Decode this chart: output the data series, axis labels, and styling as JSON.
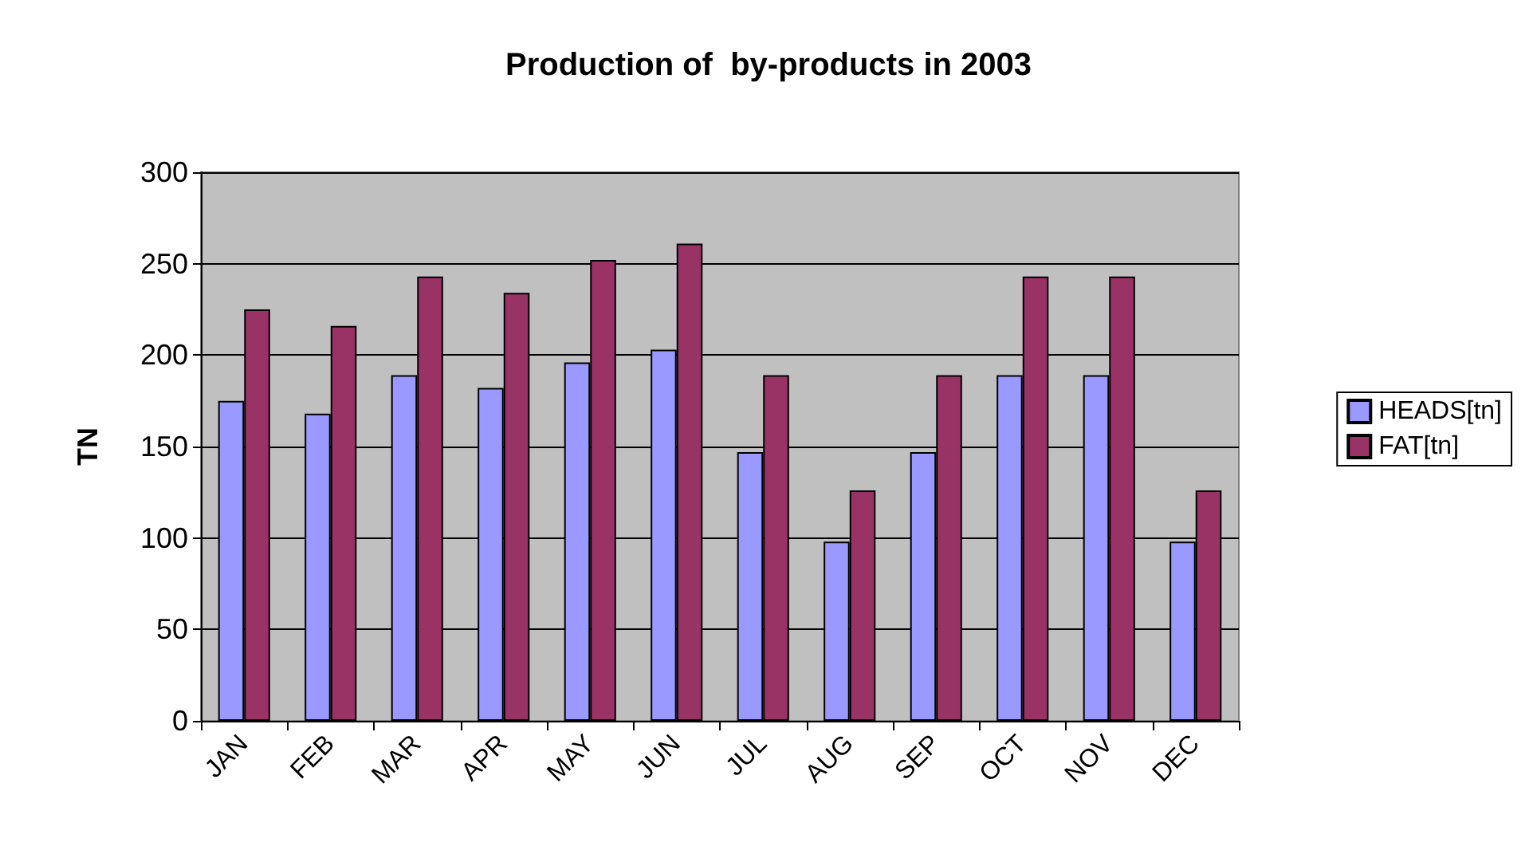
{
  "chart_data": {
    "type": "bar",
    "title": "Production of  by-products in 2003",
    "ylabel": "TN",
    "categories": [
      "JAN",
      "FEB",
      "MAR",
      "APR",
      "MAY",
      "JUN",
      "JUL",
      "AUG",
      "SEP",
      "OCT",
      "NOV",
      "DEC"
    ],
    "series": [
      {
        "name": "HEADS[tn]",
        "color": "#9999ff",
        "values": [
          175,
          168,
          189,
          182,
          196,
          203,
          147,
          98,
          147,
          189,
          189,
          98
        ]
      },
      {
        "name": "FAT[tn]",
        "color": "#993366",
        "values": [
          225,
          216,
          243,
          234,
          252,
          261,
          189,
          126,
          189,
          243,
          243,
          126
        ]
      }
    ],
    "ylim": [
      0,
      300
    ],
    "yticks": [
      0,
      50,
      100,
      150,
      200,
      250,
      300
    ],
    "grid": "y",
    "legend": "right"
  }
}
